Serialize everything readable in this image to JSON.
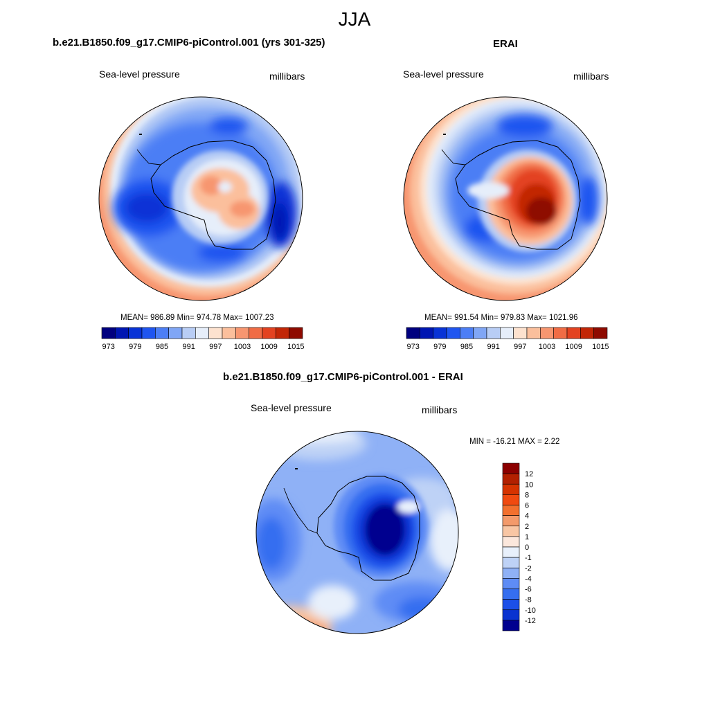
{
  "season": "JJA",
  "panels": [
    {
      "title": "b.e21.B1850.f09_g17.CMIP6-piControl.001 (yrs 301-325)",
      "left_label": "Sea-level pressure",
      "right_label": "millibars",
      "stats": "MEAN= 986.89  Min= 974.78  Max= 1007.23"
    },
    {
      "title": "ERAI",
      "left_label": "Sea-level pressure",
      "right_label": "millibars",
      "stats": "MEAN= 991.54  Min= 979.83  Max= 1021.96"
    },
    {
      "title": "b.e21.B1850.f09_g17.CMIP6-piControl.001 - ERAI",
      "left_label": "Sea-level pressure",
      "right_label": "millibars",
      "stats": "MIN = -16.21 MAX =   2.22"
    }
  ],
  "abs_colorbar": {
    "tick_labels": [
      "973",
      "979",
      "985",
      "991",
      "997",
      "1003",
      "1009",
      "1015"
    ],
    "colors": [
      "#00007f",
      "#0016b2",
      "#0833d6",
      "#1f55f0",
      "#4c7ef5",
      "#80a6f5",
      "#b8cdf5",
      "#e6eefa",
      "#fde2cf",
      "#fbbf9c",
      "#f79670",
      "#f06c45",
      "#e34220",
      "#c22606",
      "#8e0a00"
    ]
  },
  "diff_colorbar": {
    "tick_labels": [
      "12",
      "10",
      "8",
      "6",
      "4",
      "2",
      "1",
      "0",
      "-1",
      "-2",
      "-4",
      "-6",
      "-8",
      "-10",
      "-12"
    ],
    "colors": [
      "#8b0000",
      "#b22000",
      "#d63300",
      "#f04a10",
      "#f2702e",
      "#f39a6b",
      "#f8c6a4",
      "#fbe7dc",
      "#e8f0fb",
      "#bed2f6",
      "#8fb1f6",
      "#5e8cf5",
      "#356ef0",
      "#1b4fe8",
      "#0a33d0",
      "#00008f"
    ]
  }
}
